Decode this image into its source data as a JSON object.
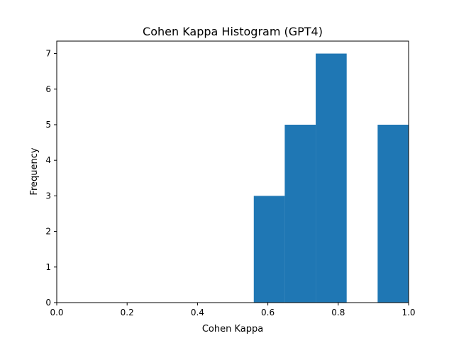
{
  "chart_data": {
    "type": "bar",
    "title": "Cohen Kappa Histogram (GPT4)",
    "xlabel": "Cohen Kappa",
    "ylabel": "Frequency",
    "xlim": [
      0.0,
      1.0
    ],
    "ylim": [
      0,
      7.35
    ],
    "x_ticks": [
      0.0,
      0.2,
      0.4,
      0.6,
      0.8,
      1.0
    ],
    "x_tick_labels": [
      "0.0",
      "0.2",
      "0.4",
      "0.6",
      "0.8",
      "1.0"
    ],
    "y_ticks": [
      0,
      1,
      2,
      3,
      4,
      5,
      6,
      7
    ],
    "y_tick_labels": [
      "0",
      "1",
      "2",
      "3",
      "4",
      "5",
      "6",
      "7"
    ],
    "bins": [
      {
        "start": 0.56,
        "end": 0.648,
        "count": 3
      },
      {
        "start": 0.648,
        "end": 0.736,
        "count": 5
      },
      {
        "start": 0.736,
        "end": 0.824,
        "count": 7
      },
      {
        "start": 0.824,
        "end": 0.912,
        "count": 0
      },
      {
        "start": 0.912,
        "end": 1.0,
        "count": 5
      }
    ],
    "bar_color": "#1f77b4",
    "grid": false,
    "legend": "none"
  }
}
